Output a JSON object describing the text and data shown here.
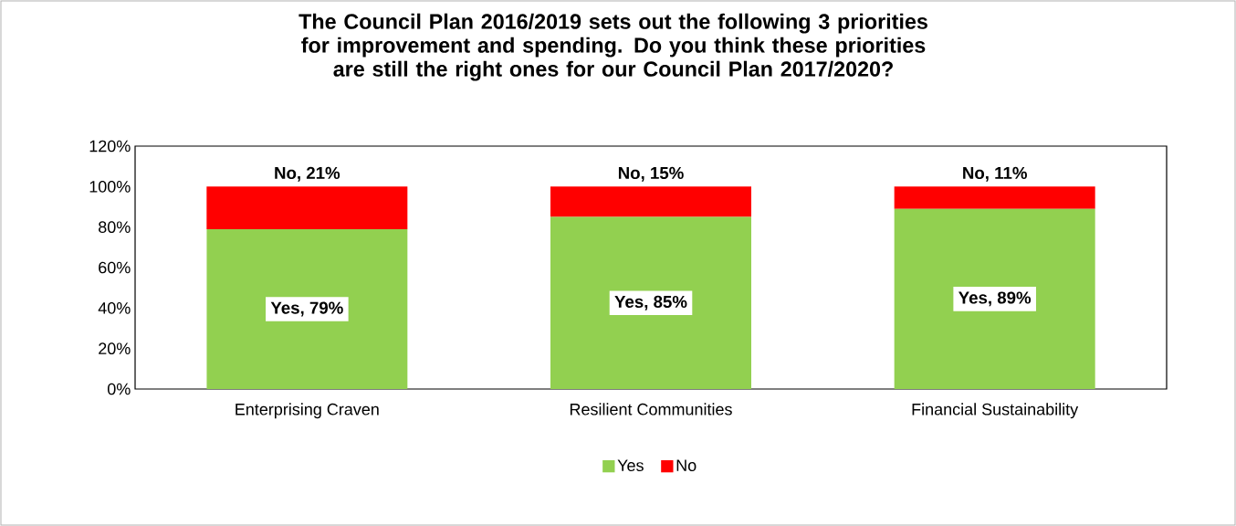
{
  "chart_data": {
    "type": "bar",
    "title": "The Council Plan 2016/2019 sets out the following 3 priorities for improvement and spending. Do you think these priorities are still the right ones for our Council Plan 2017/2020?",
    "categories": [
      "Enterprising Craven",
      "Resilient Communities",
      "Financial Sustainability"
    ],
    "stacked": true,
    "series": [
      {
        "name": "Yes",
        "color": "#92d050",
        "values": [
          79,
          85,
          89
        ],
        "value_labels": [
          "Yes, 79%",
          "Yes, 85%",
          "Yes, 89%"
        ]
      },
      {
        "name": "No",
        "color": "#ff0000",
        "values": [
          21,
          15,
          11
        ],
        "value_labels": [
          "No, 21%",
          "No, 15%",
          "No, 11%"
        ]
      }
    ],
    "ylim": [
      0,
      120
    ],
    "yticks": [
      {
        "value": 0,
        "label": "0%"
      },
      {
        "value": 20,
        "label": "20%"
      },
      {
        "value": 40,
        "label": "40%"
      },
      {
        "value": 60,
        "label": "60%"
      },
      {
        "value": 80,
        "label": "80%"
      },
      {
        "value": 100,
        "label": "100%"
      },
      {
        "value": 120,
        "label": "120%"
      }
    ],
    "grid": false,
    "legend": "bottom"
  }
}
